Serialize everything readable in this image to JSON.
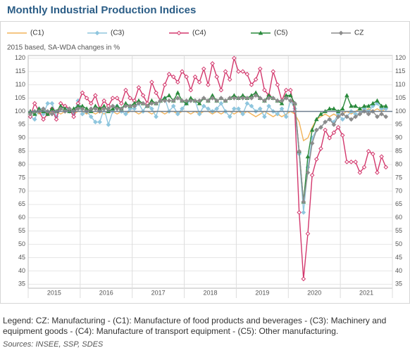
{
  "chart_data": {
    "type": "line",
    "title": "Monthly Industrial Production Indices",
    "subtitle": "2015 based, SA-WDA changes in %",
    "note": "Legend: CZ: Manufacturing - (C1): Manufacture of food products and beverages - (C3): Machinery and equipment goods - (C4): Manufacture of transport equipment - (C5): Other manufacturing.",
    "source": "Sources: INSEE, SSP, SDES",
    "categories": [
      null,
      null,
      null,
      null,
      null,
      null,
      "2015",
      null,
      null,
      null,
      null,
      null,
      null,
      null,
      null,
      null,
      null,
      null,
      "2016",
      null,
      null,
      null,
      null,
      null,
      null,
      null,
      null,
      null,
      null,
      null,
      "2017",
      null,
      null,
      null,
      null,
      null,
      null,
      null,
      null,
      null,
      null,
      null,
      "2018",
      null,
      null,
      null,
      null,
      null,
      null,
      null,
      null,
      null,
      null,
      null,
      "2019",
      null,
      null,
      null,
      null,
      null,
      null,
      null,
      null,
      null,
      null,
      null,
      "2020",
      null,
      null,
      null,
      null,
      null,
      null,
      null,
      null,
      null,
      null,
      null,
      "2021",
      null,
      null,
      null,
      null
    ],
    "ylim": [
      33.5,
      121
    ],
    "yticks": [
      35,
      40,
      45,
      50,
      55,
      60,
      65,
      70,
      75,
      80,
      85,
      90,
      95,
      100,
      105,
      110,
      115,
      120
    ],
    "baseline": 100,
    "grid": true,
    "series": [
      {
        "name": "(C1)",
        "color": "#f2b35a",
        "marker": "none",
        "values": [
          99,
          100,
          99,
          100,
          99,
          100,
          100,
          99,
          100,
          100,
          99,
          100,
          100,
          99,
          100,
          99,
          100,
          99,
          100,
          100,
          99,
          100,
          99,
          100,
          100,
          99,
          100,
          100,
          99,
          100,
          100,
          99,
          100,
          100,
          99,
          100,
          100,
          99,
          100,
          99,
          100,
          100,
          99,
          100,
          99,
          100,
          100,
          99,
          100,
          99,
          100,
          99,
          98,
          99,
          100,
          99,
          98,
          99,
          98,
          99,
          100,
          99,
          96,
          89,
          90,
          94,
          97,
          98,
          99,
          98,
          99,
          98,
          99,
          100,
          99,
          100,
          101,
          100,
          101,
          100,
          101,
          100,
          101
        ]
      },
      {
        "name": "(C3)",
        "color": "#8fc6de",
        "marker": "diamond",
        "values": [
          98,
          97,
          101,
          99,
          103,
          103,
          98,
          101,
          102,
          100,
          99,
          104,
          99,
          100,
          98,
          96,
          96,
          101,
          95,
          100,
          102,
          100,
          99,
          101,
          101,
          103,
          100,
          103,
          101,
          98,
          104,
          105,
          100,
          102,
          99,
          101,
          103,
          104,
          104,
          99,
          102,
          101,
          100,
          101,
          103,
          100,
          98,
          101,
          101,
          99,
          103,
          102,
          100,
          101,
          98,
          102,
          100,
          99,
          101,
          98,
          104,
          101,
          84,
          62,
          79,
          90,
          93,
          94,
          96,
          97,
          96,
          99,
          97,
          98,
          100,
          99,
          99,
          101,
          100,
          102,
          103,
          101,
          101
        ]
      },
      {
        "name": "(C4)",
        "color": "#d3386d",
        "marker": "open-diamond",
        "values": [
          98,
          103,
          100,
          97,
          99,
          101,
          97,
          103,
          102,
          101,
          98,
          103,
          107,
          105,
          103,
          106,
          101,
          104,
          102,
          105,
          105,
          103,
          108,
          105,
          104,
          109,
          106,
          103,
          111,
          107,
          104,
          110,
          114,
          113,
          111,
          115,
          113,
          108,
          113,
          111,
          116,
          110,
          118,
          113,
          108,
          115,
          112,
          120,
          115,
          115,
          114,
          110,
          112,
          116,
          108,
          106,
          115,
          110,
          104,
          108,
          108,
          100,
          62,
          37,
          54,
          76,
          82,
          86,
          93,
          90,
          92,
          94,
          91,
          81,
          81,
          81,
          77,
          79,
          85,
          84,
          77,
          83,
          79
        ]
      },
      {
        "name": "(C5)",
        "color": "#2a8a3c",
        "marker": "triangle",
        "values": [
          100,
          99,
          101,
          100,
          99,
          101,
          100,
          102,
          101,
          100,
          101,
          102,
          102,
          101,
          100,
          102,
          101,
          102,
          100,
          101,
          102,
          101,
          103,
          102,
          103,
          104,
          103,
          102,
          104,
          103,
          104,
          105,
          106,
          104,
          107,
          104,
          103,
          105,
          104,
          103,
          105,
          104,
          106,
          104,
          105,
          104,
          105,
          106,
          105,
          106,
          105,
          106,
          107,
          105,
          104,
          106,
          105,
          104,
          103,
          106,
          106,
          103,
          85,
          66,
          83,
          93,
          97,
          99,
          100,
          101,
          101,
          100,
          101,
          106,
          102,
          102,
          101,
          102,
          102,
          103,
          104,
          102,
          102
        ]
      },
      {
        "name": "CZ",
        "color": "#8c8c8c",
        "marker": "diamond",
        "values": [
          99,
          100,
          100,
          101,
          100,
          99,
          100,
          101,
          100,
          101,
          100,
          101,
          101,
          100,
          101,
          101,
          100,
          101,
          101,
          102,
          101,
          101,
          102,
          102,
          102,
          103,
          103,
          102,
          103,
          103,
          104,
          104,
          104,
          104,
          105,
          104,
          104,
          104,
          104,
          104,
          105,
          104,
          105,
          104,
          105,
          104,
          105,
          105,
          105,
          105,
          105,
          105,
          106,
          105,
          104,
          105,
          105,
          104,
          104,
          105,
          104,
          103,
          85,
          66,
          77,
          88,
          93,
          94,
          96,
          97,
          95,
          98,
          99,
          98,
          97,
          98,
          99,
          100,
          99,
          100,
          98,
          99,
          98
        ]
      }
    ]
  }
}
